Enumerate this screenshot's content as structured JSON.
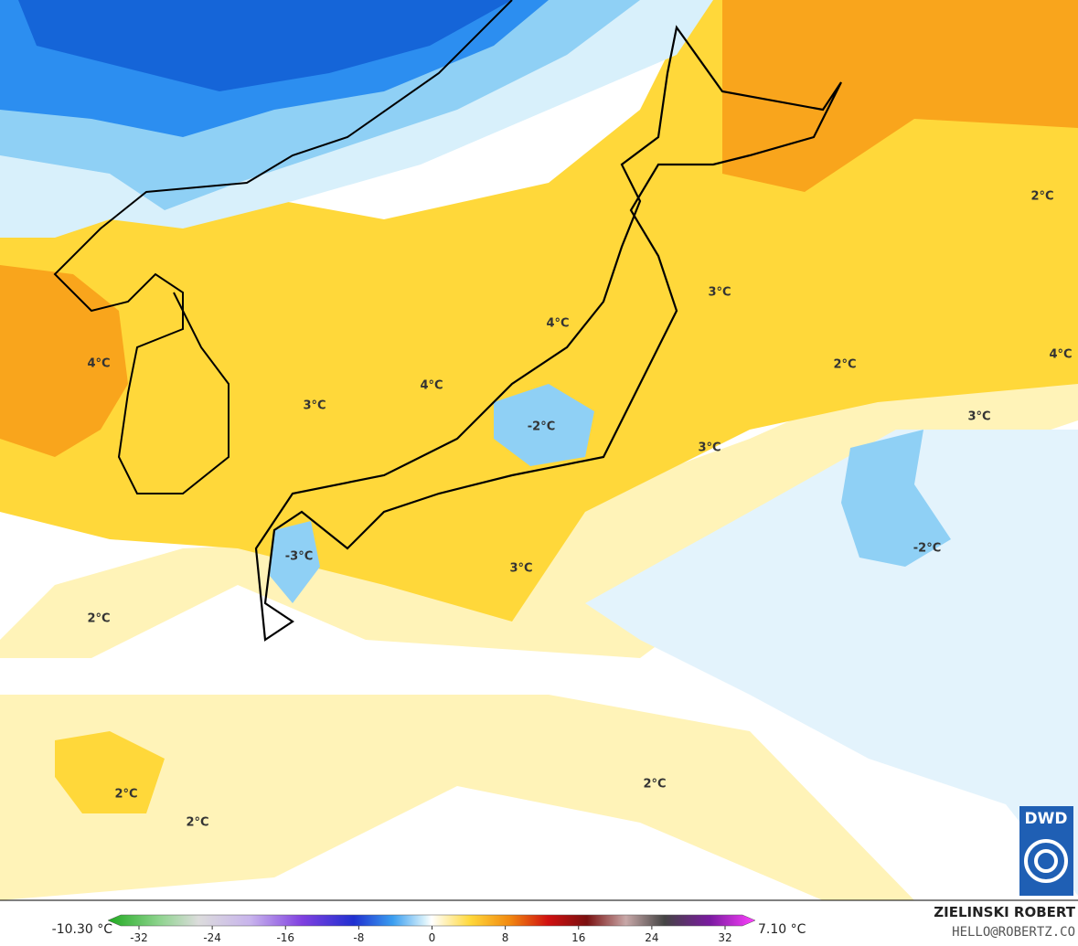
{
  "map": {
    "contour_labels": [
      "2°C",
      "3°C",
      "4°C",
      "2°C",
      "4°C",
      "4°C",
      "4°C",
      "3°C",
      "3°C",
      "-2°C",
      "3°C",
      "-2°C",
      "-3°C",
      "3°C",
      "2°C",
      "2°C",
      "2°C",
      "2°C"
    ]
  },
  "colorbar": {
    "min_label": "-10.30 °C",
    "max_label": "7.10 °C",
    "ticks": [
      -32,
      -24,
      -16,
      -8,
      0,
      8,
      16,
      24,
      32
    ]
  },
  "credit": {
    "author": "ZIELINSKI ROBERT",
    "contact": "HELLO@ROBERTZ.CO"
  },
  "logo": "DWD"
}
